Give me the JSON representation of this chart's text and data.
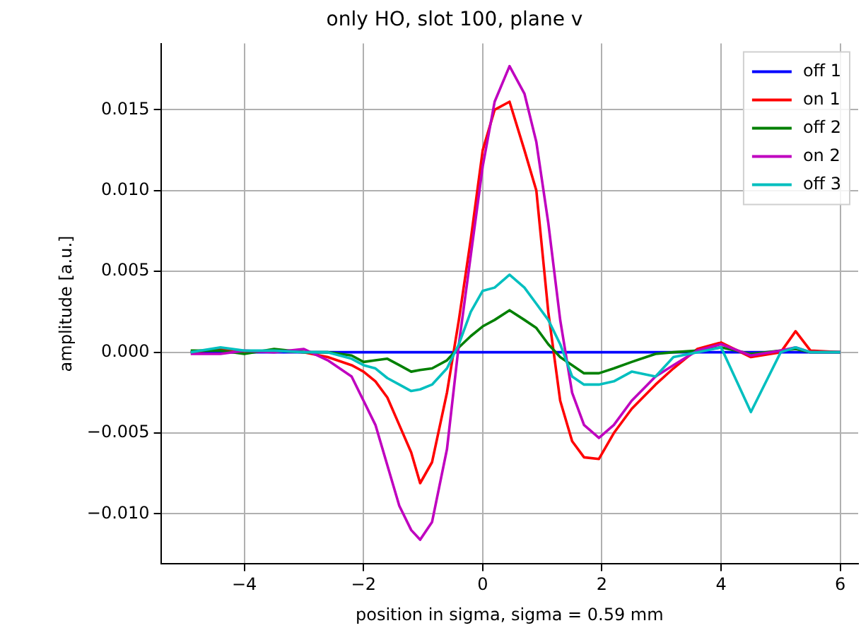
{
  "chart_data": {
    "type": "line",
    "title": "only HO, slot 100, plane v",
    "xlabel": "position in sigma, sigma = 0.59 mm",
    "ylabel": "amplitude [a.u.]",
    "x": [
      -4.9,
      -4.4,
      -4,
      -3.5,
      -3,
      -2.6,
      -2.2,
      -2,
      -1.8,
      -1.6,
      -1.4,
      -1.2,
      -1.05,
      -0.85,
      -0.6,
      -0.4,
      -0.2,
      0,
      0.2,
      0.45,
      0.7,
      0.9,
      1.1,
      1.3,
      1.5,
      1.7,
      1.95,
      2.2,
      2.5,
      2.9,
      3.2,
      3.6,
      4,
      4.5,
      5,
      5.25,
      5.5,
      6
    ],
    "series": [
      {
        "name": "off 1",
        "color": "#0000ff",
        "values": [
          0,
          0,
          0,
          0,
          0,
          0,
          0,
          0,
          0,
          0,
          0,
          0,
          0,
          0,
          0,
          0,
          0,
          0,
          0,
          0,
          0,
          0,
          0,
          0,
          0,
          0,
          0,
          0,
          0,
          0,
          0,
          0,
          0,
          0,
          0,
          0,
          0,
          0
        ]
      },
      {
        "name": "on 1",
        "color": "#ff0000",
        "values": [
          0,
          0.0002,
          0,
          0.0001,
          0,
          -0.0003,
          -0.0008,
          -0.0012,
          -0.0018,
          -0.0028,
          -0.0045,
          -0.0062,
          -0.0081,
          -0.0068,
          -0.0025,
          0.002,
          0.007,
          0.0125,
          0.015,
          0.0155,
          0.0125,
          0.01,
          0.0025,
          -0.003,
          -0.0055,
          -0.0065,
          -0.0066,
          -0.005,
          -0.0035,
          -0.002,
          -0.001,
          0.0002,
          0.0006,
          -0.0003,
          0,
          0.0013,
          0.0001,
          0
        ]
      },
      {
        "name": "off 2",
        "color": "#008000",
        "values": [
          0.0001,
          0.0001,
          -0.0001,
          0.0002,
          0,
          0,
          -0.0002,
          -0.0006,
          -0.0005,
          -0.0004,
          -0.0008,
          -0.0012,
          -0.0011,
          -0.001,
          -0.0005,
          0.0003,
          0.001,
          0.0016,
          0.002,
          0.0026,
          0.002,
          0.0015,
          0.0005,
          -0.0003,
          -0.0008,
          -0.0013,
          -0.0013,
          -0.001,
          -0.0006,
          -0.0001,
          0,
          0.0001,
          0.0003,
          -0.0001,
          0.0001,
          0.0002,
          0,
          0
        ]
      },
      {
        "name": "on 2",
        "color": "#bf00bf",
        "values": [
          -0.0001,
          -0.0001,
          0.0001,
          0,
          0.0002,
          -0.0005,
          -0.0015,
          -0.003,
          -0.0045,
          -0.007,
          -0.0095,
          -0.011,
          -0.0116,
          -0.0105,
          -0.006,
          0.0005,
          0.006,
          0.0115,
          0.0155,
          0.0177,
          0.016,
          0.013,
          0.008,
          0.002,
          -0.0025,
          -0.0045,
          -0.0053,
          -0.0045,
          -0.003,
          -0.0015,
          -0.0008,
          0.0001,
          0.0005,
          -0.0002,
          0.0001,
          0.0003,
          0,
          0
        ]
      },
      {
        "name": "off 3",
        "color": "#00bfbf",
        "values": [
          0,
          0.0003,
          0.0001,
          0.0001,
          0,
          0,
          -0.0004,
          -0.0008,
          -0.001,
          -0.0016,
          -0.002,
          -0.0024,
          -0.0023,
          -0.002,
          -0.001,
          0.0005,
          0.0025,
          0.0038,
          0.004,
          0.0048,
          0.004,
          0.003,
          0.002,
          0.0005,
          -0.0015,
          -0.002,
          -0.002,
          -0.0018,
          -0.0012,
          -0.0015,
          -0.0003,
          0,
          0.0003,
          -0.0037,
          0,
          0.0003,
          0,
          0
        ]
      }
    ],
    "xlim": [
      -5.4,
      6.3
    ],
    "xticks": [
      {
        "value": -4,
        "label": "−4"
      },
      {
        "value": -2,
        "label": "−2"
      },
      0,
      2,
      4,
      6
    ],
    "ylim": [
      -0.0131,
      0.0191
    ],
    "yticks": [
      {
        "value": -0.01,
        "label": "−0.010"
      },
      {
        "value": -0.005,
        "label": "−0.005"
      },
      {
        "value": 0,
        "label": "0.000"
      },
      {
        "value": 0.005,
        "label": "0.005"
      },
      {
        "value": 0.01,
        "label": "0.010"
      },
      {
        "value": 0.015,
        "label": "0.015"
      }
    ],
    "grid": true,
    "legend": "top right",
    "marker": "none",
    "line_style": "solid"
  }
}
